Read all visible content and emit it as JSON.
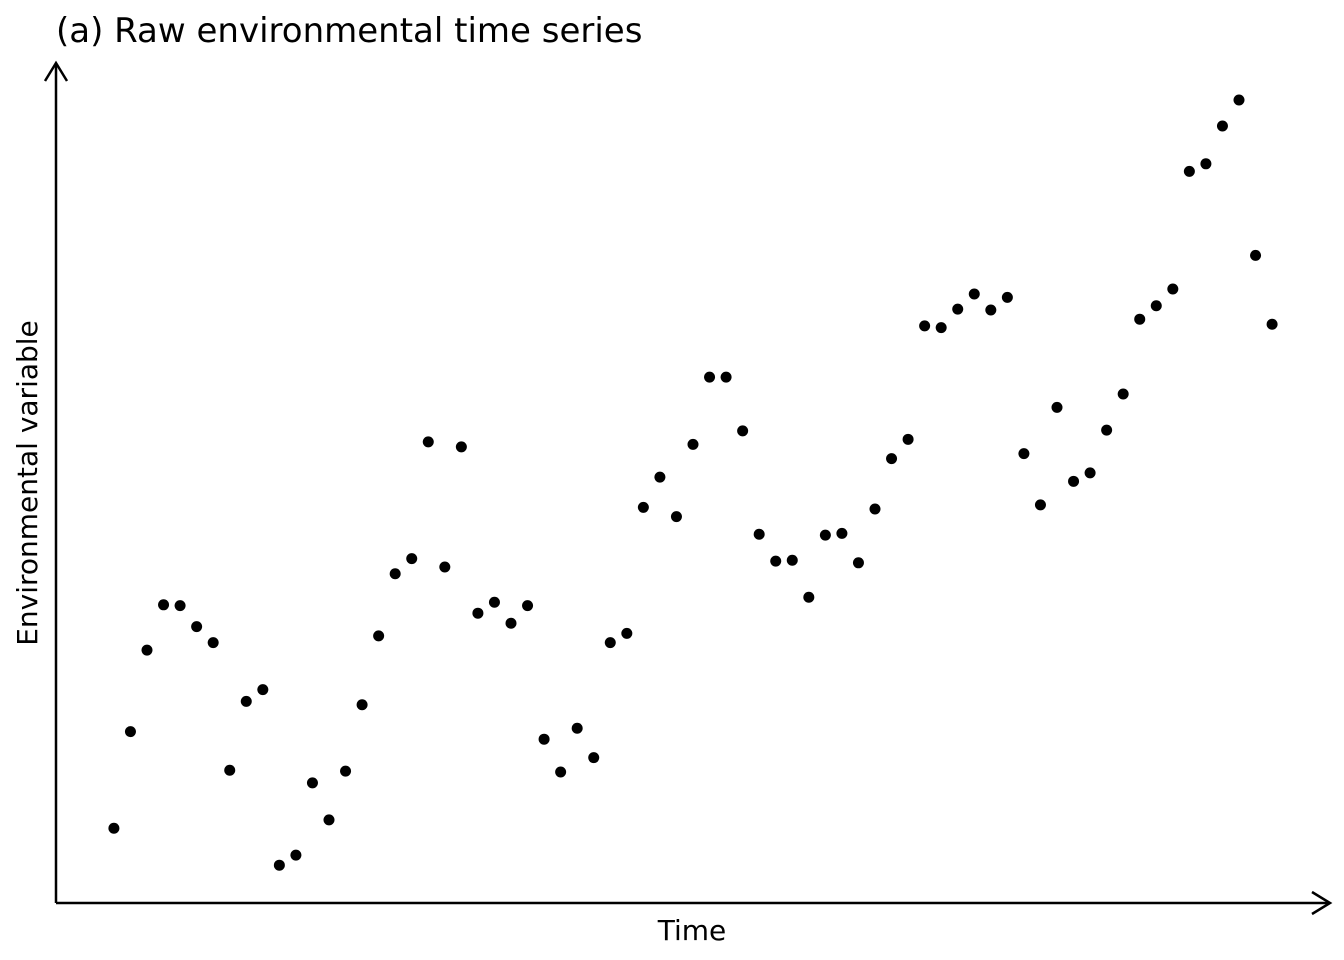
{
  "chart_data": {
    "type": "scatter",
    "title": "(a) Raw environmental time series",
    "x_label": "Time",
    "y_label": "Environmental variable",
    "color": "#000000",
    "x": [
      1,
      2,
      3,
      4,
      5,
      6,
      7,
      8,
      9,
      10,
      11,
      12,
      13,
      14,
      15,
      16,
      17,
      18,
      19,
      20,
      21,
      22,
      23,
      24,
      25,
      26,
      27,
      28,
      29,
      30,
      31,
      32,
      33,
      34,
      35,
      36,
      37,
      38,
      39,
      40,
      41,
      42,
      43,
      44,
      45,
      46,
      47,
      48,
      49,
      50,
      51,
      52,
      53,
      54,
      55,
      56,
      57,
      58,
      59,
      60,
      61,
      62,
      63,
      64,
      65,
      66,
      67,
      68,
      69,
      70,
      71
    ],
    "values": [
      8.9,
      20.4,
      30.1,
      35.5,
      35.4,
      32.9,
      31.0,
      15.8,
      24.0,
      25.4,
      4.5,
      5.7,
      14.3,
      9.9,
      15.7,
      23.6,
      31.8,
      39.2,
      41.0,
      54.9,
      40.0,
      54.3,
      34.5,
      35.8,
      33.3,
      35.4,
      19.5,
      15.6,
      20.8,
      17.3,
      31.0,
      32.1,
      47.1,
      50.7,
      46.0,
      54.6,
      62.6,
      62.6,
      56.2,
      43.9,
      40.7,
      40.8,
      36.4,
      43.8,
      44.0,
      40.5,
      46.9,
      52.9,
      55.2,
      68.7,
      68.5,
      70.7,
      72.5,
      70.6,
      72.1,
      53.5,
      47.4,
      59.0,
      50.2,
      51.2,
      56.3,
      60.6,
      69.5,
      71.1,
      73.1,
      87.1,
      88.0,
      92.5,
      95.6,
      77.1,
      68.9
    ],
    "xlim": [
      -2.5,
      74.5
    ],
    "ylim": [
      0,
      100
    ]
  }
}
